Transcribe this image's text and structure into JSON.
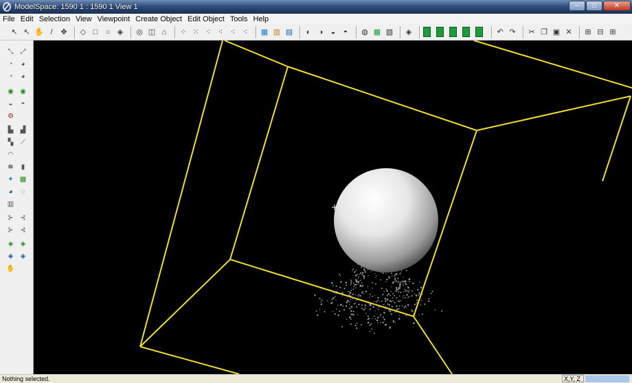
{
  "window": {
    "title": "ModelSpace: 1590 1 : 1590 1 View 1",
    "controls": {
      "minimize": "–",
      "maximize": "□",
      "close": "✕"
    }
  },
  "menu": [
    "File",
    "Edit",
    "Selection",
    "View",
    "Viewpoint",
    "Create Object",
    "Edit Object",
    "Tools",
    "Help"
  ],
  "status": {
    "message": "Nothing selected.",
    "coords_label": "X,Y, Z"
  },
  "colors": {
    "viewport_bg": "#000000",
    "box_edges": "#f0e030",
    "sphere": "#e8e8e8",
    "point_cloud": "#9a9a9a",
    "accent_green": "#1f9a3c"
  }
}
